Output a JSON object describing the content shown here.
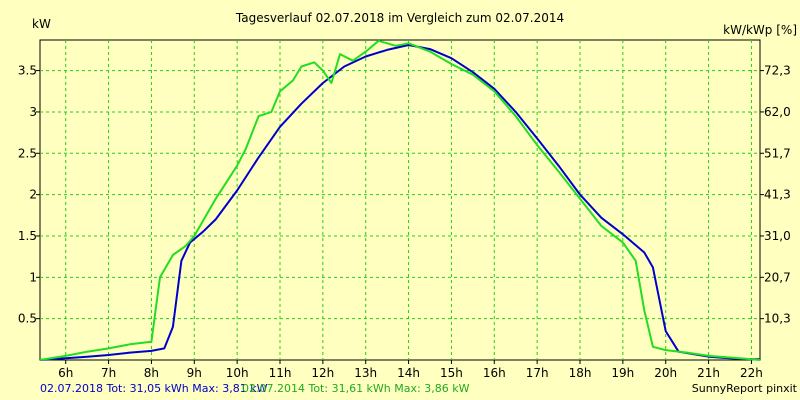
{
  "chart_data": {
    "type": "line",
    "title": "Tagesverlauf 02.07.2018 im Vergleich zum 02.07.2014",
    "ylabel_left": "kW",
    "ylabel_right": "kW/kWp [%]",
    "xlim": [
      5.4,
      22.2
    ],
    "ylim": [
      0,
      3.87
    ],
    "x_ticks": [
      {
        "v": 6,
        "label": "6h"
      },
      {
        "v": 7,
        "label": "7h"
      },
      {
        "v": 8,
        "label": "8h"
      },
      {
        "v": 9,
        "label": "9h"
      },
      {
        "v": 10,
        "label": "10h"
      },
      {
        "v": 11,
        "label": "11h"
      },
      {
        "v": 12,
        "label": "12h"
      },
      {
        "v": 13,
        "label": "13h"
      },
      {
        "v": 14,
        "label": "14h"
      },
      {
        "v": 15,
        "label": "15h"
      },
      {
        "v": 16,
        "label": "16h"
      },
      {
        "v": 17,
        "label": "17h"
      },
      {
        "v": 18,
        "label": "18h"
      },
      {
        "v": 19,
        "label": "19h"
      },
      {
        "v": 20,
        "label": "20h"
      },
      {
        "v": 21,
        "label": "21h"
      },
      {
        "v": 22,
        "label": "22h"
      }
    ],
    "y_ticks_left": [
      {
        "v": 0.5,
        "label": "0.5"
      },
      {
        "v": 1,
        "label": "1"
      },
      {
        "v": 1.5,
        "label": "1.5"
      },
      {
        "v": 2,
        "label": "2"
      },
      {
        "v": 2.5,
        "label": "2.5"
      },
      {
        "v": 3,
        "label": "3"
      },
      {
        "v": 3.5,
        "label": "3.5"
      }
    ],
    "y_ticks_right": [
      {
        "v": 0.5,
        "label": "10,3"
      },
      {
        "v": 1,
        "label": "20,7"
      },
      {
        "v": 1.5,
        "label": "31,0"
      },
      {
        "v": 2,
        "label": "41,3"
      },
      {
        "v": 2.5,
        "label": "51,7"
      },
      {
        "v": 3,
        "label": "62,0"
      },
      {
        "v": 3.5,
        "label": "72,3"
      }
    ],
    "grid": true,
    "series": [
      {
        "name": "02.07.2018",
        "color": "#0000cc",
        "points": [
          [
            5.4,
            0
          ],
          [
            6.0,
            0.02
          ],
          [
            6.5,
            0.04
          ],
          [
            7.0,
            0.06
          ],
          [
            7.5,
            0.09
          ],
          [
            8.0,
            0.11
          ],
          [
            8.3,
            0.14
          ],
          [
            8.5,
            0.4
          ],
          [
            8.7,
            1.2
          ],
          [
            8.9,
            1.42
          ],
          [
            9.2,
            1.55
          ],
          [
            9.5,
            1.7
          ],
          [
            10.0,
            2.05
          ],
          [
            10.5,
            2.45
          ],
          [
            11.0,
            2.82
          ],
          [
            11.5,
            3.1
          ],
          [
            12.0,
            3.35
          ],
          [
            12.5,
            3.55
          ],
          [
            13.0,
            3.67
          ],
          [
            13.5,
            3.75
          ],
          [
            14.0,
            3.81
          ],
          [
            14.5,
            3.76
          ],
          [
            15.0,
            3.65
          ],
          [
            15.5,
            3.48
          ],
          [
            16.0,
            3.28
          ],
          [
            16.5,
            3.0
          ],
          [
            17.0,
            2.68
          ],
          [
            17.5,
            2.35
          ],
          [
            18.0,
            2.0
          ],
          [
            18.5,
            1.72
          ],
          [
            19.0,
            1.52
          ],
          [
            19.5,
            1.3
          ],
          [
            19.7,
            1.12
          ],
          [
            20.0,
            0.35
          ],
          [
            20.3,
            0.1
          ],
          [
            21.0,
            0.04
          ],
          [
            21.5,
            0.02
          ],
          [
            22.0,
            0.01
          ],
          [
            22.2,
            0.01
          ]
        ]
      },
      {
        "name": "02.07.2014",
        "color": "#22dd22",
        "points": [
          [
            5.4,
            0
          ],
          [
            6.0,
            0.05
          ],
          [
            6.5,
            0.1
          ],
          [
            7.0,
            0.14
          ],
          [
            7.5,
            0.19
          ],
          [
            8.0,
            0.22
          ],
          [
            8.2,
            1.0
          ],
          [
            8.5,
            1.27
          ],
          [
            8.8,
            1.38
          ],
          [
            9.0,
            1.5
          ],
          [
            9.5,
            1.95
          ],
          [
            10.0,
            2.35
          ],
          [
            10.2,
            2.55
          ],
          [
            10.5,
            2.95
          ],
          [
            10.8,
            3.0
          ],
          [
            11.0,
            3.25
          ],
          [
            11.3,
            3.38
          ],
          [
            11.5,
            3.55
          ],
          [
            11.8,
            3.6
          ],
          [
            12.0,
            3.5
          ],
          [
            12.2,
            3.35
          ],
          [
            12.4,
            3.7
          ],
          [
            12.7,
            3.62
          ],
          [
            13.0,
            3.73
          ],
          [
            13.3,
            3.86
          ],
          [
            13.7,
            3.8
          ],
          [
            14.0,
            3.83
          ],
          [
            14.5,
            3.73
          ],
          [
            15.0,
            3.58
          ],
          [
            15.5,
            3.45
          ],
          [
            16.0,
            3.25
          ],
          [
            16.5,
            2.95
          ],
          [
            17.0,
            2.6
          ],
          [
            17.5,
            2.28
          ],
          [
            18.0,
            1.95
          ],
          [
            18.5,
            1.62
          ],
          [
            19.0,
            1.42
          ],
          [
            19.3,
            1.2
          ],
          [
            19.5,
            0.6
          ],
          [
            19.7,
            0.16
          ],
          [
            20.0,
            0.12
          ],
          [
            20.5,
            0.09
          ],
          [
            21.0,
            0.05
          ],
          [
            21.5,
            0.03
          ],
          [
            22.0,
            0.01
          ],
          [
            22.2,
            0.0
          ]
        ]
      }
    ],
    "footer": {
      "series1": "02.07.2018 Tot: 31,05 kWh Max: 3,81 kW",
      "series2": "02.07.2014 Tot: 31,61 kWh Max: 3,86 kW",
      "source": "SunnyReport pinxit"
    }
  }
}
